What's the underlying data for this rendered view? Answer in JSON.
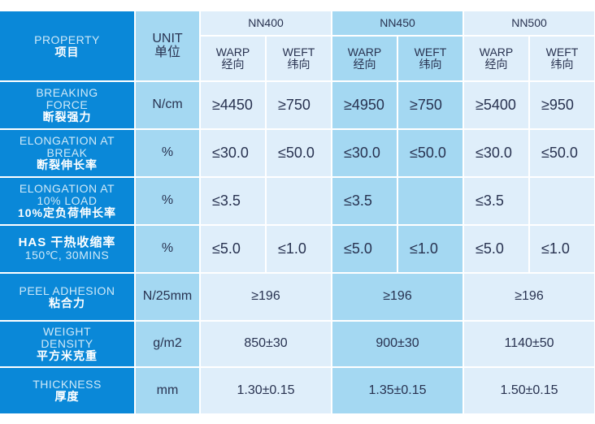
{
  "header": {
    "property": "PROPERTY",
    "property_cn": "项目",
    "unit": "UNIT",
    "unit_cn": "单位",
    "products": [
      "NN400",
      "NN450",
      "NN500"
    ],
    "warp": "WARP",
    "warp_cn": "经向",
    "weft": "WEFT",
    "weft_cn": "纬向"
  },
  "rows": [
    {
      "en": "BREAKING FORCE",
      "cn": "断裂强力",
      "unit": "N/cm",
      "values": [
        "≥4450",
        "≥750",
        "≥4950",
        "≥750",
        "≥5400",
        "≥950"
      ]
    },
    {
      "en": "ELONGATION AT BREAK",
      "cn": "断裂伸长率",
      "unit": "%",
      "values": [
        "≤30.0",
        "≤50.0",
        "≤30.0",
        "≤50.0",
        "≤30.0",
        "≤50.0"
      ]
    },
    {
      "en": "ELONGATION AT 10% LOAD",
      "cn": "10%定负荷伸长率",
      "unit": "%",
      "values": [
        "≤3.5",
        "",
        "≤3.5",
        "",
        "≤3.5",
        ""
      ]
    },
    {
      "en": "HAS  干热收缩率",
      "cn": "150℃, 30MINS",
      "unit": "%",
      "values": [
        "≤5.0",
        "≤1.0",
        "≤5.0",
        "≤1.0",
        "≤5.0",
        "≤1.0"
      ]
    },
    {
      "en": "PEEL ADHESION",
      "cn": "粘合力",
      "unit": "N/25mm",
      "values": [
        "≥196",
        "≥196",
        "≥196"
      ]
    },
    {
      "en": "WEIGHT DENSITY",
      "cn": "平方米克重",
      "unit": "g/m2",
      "values": [
        "850±30",
        "900±30",
        "1140±50"
      ]
    },
    {
      "en": "THICKNESS",
      "cn": "厚度",
      "unit": "mm",
      "values": [
        "1.30±0.15",
        "1.35±0.15",
        "1.50±0.15"
      ]
    }
  ]
}
